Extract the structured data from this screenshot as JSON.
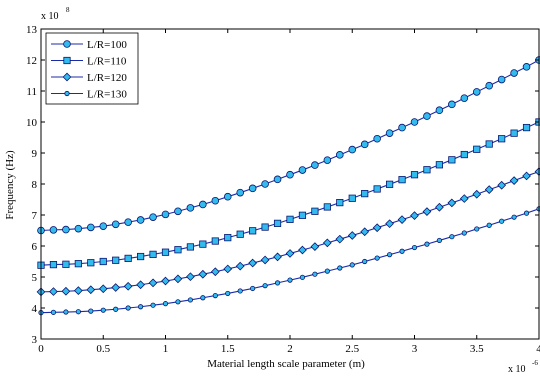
{
  "chart_data": {
    "type": "line",
    "title": "",
    "xlabel": "Material length scale parameter (m)",
    "ylabel": "Frequency (Hz)",
    "x_multiplier": "x 10",
    "x_exponent": "-6",
    "y_multiplier": "x 10",
    "y_exponent": "8",
    "xlim": [
      0,
      4
    ],
    "ylim": [
      3,
      13
    ],
    "xticks": [
      "0",
      "0.5",
      "1",
      "1.5",
      "2",
      "2.5",
      "3",
      "3.5",
      "4"
    ],
    "yticks": [
      "3",
      "4",
      "5",
      "6",
      "7",
      "8",
      "9",
      "10",
      "11",
      "12",
      "13"
    ],
    "grid": false,
    "legend_position": "top-left",
    "x": [
      0,
      0.1,
      0.2,
      0.3,
      0.4,
      0.5,
      0.6,
      0.7,
      0.8,
      0.9,
      1.0,
      1.1,
      1.2,
      1.3,
      1.4,
      1.5,
      1.6,
      1.7,
      1.8,
      1.9,
      2.0,
      2.1,
      2.2,
      2.3,
      2.4,
      2.5,
      2.6,
      2.7,
      2.8,
      2.9,
      3.0,
      3.1,
      3.2,
      3.3,
      3.4,
      3.5,
      3.6,
      3.7,
      3.8,
      3.9,
      4.0
    ],
    "series": [
      {
        "name": "L/R=100",
        "marker": "circle",
        "values": [
          6.5,
          6.52,
          6.53,
          6.56,
          6.6,
          6.64,
          6.7,
          6.77,
          6.84,
          6.93,
          7.02,
          7.12,
          7.23,
          7.34,
          7.46,
          7.59,
          7.72,
          7.86,
          8.0,
          8.15,
          8.3,
          8.45,
          8.61,
          8.77,
          8.94,
          9.11,
          9.28,
          9.46,
          9.64,
          9.82,
          10.0,
          10.19,
          10.38,
          10.57,
          10.77,
          10.97,
          11.17,
          11.37,
          11.58,
          11.78,
          12.0
        ]
      },
      {
        "name": "L/R=110",
        "marker": "square",
        "values": [
          5.38,
          5.4,
          5.41,
          5.43,
          5.46,
          5.5,
          5.54,
          5.6,
          5.66,
          5.73,
          5.8,
          5.88,
          5.97,
          6.06,
          6.16,
          6.27,
          6.38,
          6.49,
          6.61,
          6.73,
          6.86,
          6.99,
          7.12,
          7.26,
          7.4,
          7.54,
          7.69,
          7.84,
          7.99,
          8.14,
          8.3,
          8.46,
          8.62,
          8.78,
          8.95,
          9.12,
          9.29,
          9.46,
          9.64,
          9.82,
          10.0
        ]
      },
      {
        "name": "L/R=120",
        "marker": "diamond",
        "values": [
          4.52,
          4.53,
          4.54,
          4.56,
          4.59,
          4.62,
          4.66,
          4.7,
          4.75,
          4.81,
          4.87,
          4.94,
          5.01,
          5.09,
          5.17,
          5.26,
          5.35,
          5.45,
          5.55,
          5.65,
          5.76,
          5.87,
          5.98,
          6.1,
          6.22,
          6.34,
          6.46,
          6.59,
          6.72,
          6.85,
          6.98,
          7.11,
          7.25,
          7.39,
          7.53,
          7.67,
          7.82,
          7.96,
          8.11,
          8.26,
          8.4
        ]
      },
      {
        "name": "L/R=130",
        "marker": "dot",
        "values": [
          3.85,
          3.86,
          3.87,
          3.88,
          3.9,
          3.93,
          3.96,
          4.0,
          4.04,
          4.09,
          4.14,
          4.2,
          4.26,
          4.33,
          4.4,
          4.47,
          4.55,
          4.63,
          4.72,
          4.81,
          4.9,
          4.99,
          5.09,
          5.19,
          5.29,
          5.39,
          5.5,
          5.61,
          5.72,
          5.83,
          5.95,
          6.06,
          6.18,
          6.3,
          6.42,
          6.55,
          6.67,
          6.8,
          6.93,
          7.06,
          7.2
        ]
      }
    ],
    "colors": {
      "line": "#1b2ba8",
      "marker_fill": "#33bbee",
      "marker_edge": "#0b1670",
      "axis": "#000000"
    }
  }
}
